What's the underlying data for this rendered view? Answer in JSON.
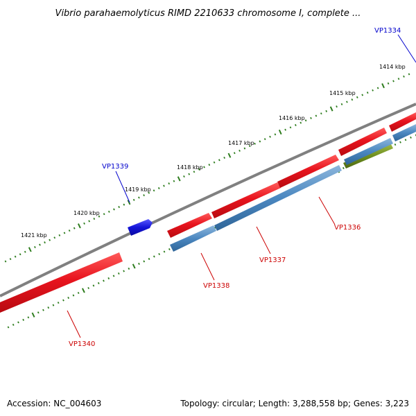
{
  "title": "Vibrio parahaemolyticus RIMD 2210633 chromosome I, complete ...",
  "footer": {
    "accession": "Accession: NC_004603",
    "summary": "Topology: circular; Length: 3,288,558 bp; Genes: 3,223"
  },
  "colors": {
    "backbone": "#808080",
    "scale_ticks": "#2e7d1e",
    "forward_cds": "#e8141e",
    "reverse_cds": "#4b87c0",
    "rna_feature": "#6f8f1f",
    "highlight_gene": "#1414d8",
    "label_forward": "#0000cc",
    "label_reverse": "#cc0000"
  },
  "scale": {
    "tick_labels": [
      "1414 kbp",
      "1415 kbp",
      "1416 kbp",
      "1417 kbp",
      "1418 kbp",
      "1419 kbp",
      "1420 kbp",
      "1421 kbp"
    ]
  },
  "gene_labels": [
    {
      "name": "VP1334",
      "strand": "forward"
    },
    {
      "name": "VP1339",
      "strand": "forward"
    },
    {
      "name": "VP1336",
      "strand": "reverse"
    },
    {
      "name": "VP1337",
      "strand": "reverse"
    },
    {
      "name": "VP1338",
      "strand": "reverse"
    },
    {
      "name": "VP1340",
      "strand": "reverse"
    }
  ]
}
